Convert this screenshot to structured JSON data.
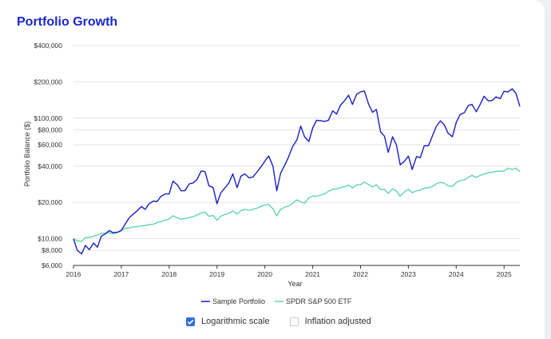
{
  "header": {
    "title": "Portfolio Growth"
  },
  "chart_data": {
    "type": "line",
    "title": "Portfolio Growth",
    "xlabel": "Year",
    "ylabel": "Portfolio Balance ($)",
    "yscale": "log",
    "ylim": [
      6000,
      400000
    ],
    "xlim": [
      2016.0,
      2025.33
    ],
    "x_ticks": [
      "2016",
      "2017",
      "2018",
      "2019",
      "2020",
      "2021",
      "2022",
      "2023",
      "2024",
      "2025"
    ],
    "y_ticks": [
      {
        "value": 6000,
        "label": "$6,000"
      },
      {
        "value": 8000,
        "label": "$8,000"
      },
      {
        "value": 10000,
        "label": "$10,000"
      },
      {
        "value": 20000,
        "label": "$20,000"
      },
      {
        "value": 40000,
        "label": "$40,000"
      },
      {
        "value": 60000,
        "label": "$60,000"
      },
      {
        "value": 80000,
        "label": "$80,000"
      },
      {
        "value": 100000,
        "label": "$100,000"
      },
      {
        "value": 200000,
        "label": "$200,000"
      },
      {
        "value": 400000,
        "label": "$400,000"
      }
    ],
    "grid": true,
    "legend_position": "bottom-center",
    "series": [
      {
        "name": "Sample Portfolio",
        "color": "#1a1fc4",
        "points": [
          [
            2016.0,
            10000
          ],
          [
            2016.08,
            8000
          ],
          [
            2016.17,
            7500
          ],
          [
            2016.25,
            8800
          ],
          [
            2016.33,
            8100
          ],
          [
            2016.42,
            9200
          ],
          [
            2016.5,
            8500
          ],
          [
            2016.58,
            10500
          ],
          [
            2016.67,
            11000
          ],
          [
            2016.75,
            11700
          ],
          [
            2016.83,
            11200
          ],
          [
            2016.92,
            11300
          ],
          [
            2017.0,
            11700
          ],
          [
            2017.08,
            13200
          ],
          [
            2017.17,
            15000
          ],
          [
            2017.25,
            16000
          ],
          [
            2017.33,
            17000
          ],
          [
            2017.42,
            18500
          ],
          [
            2017.5,
            17500
          ],
          [
            2017.58,
            19500
          ],
          [
            2017.67,
            20500
          ],
          [
            2017.75,
            20400
          ],
          [
            2017.83,
            22500
          ],
          [
            2017.92,
            23500
          ],
          [
            2018.0,
            23500
          ],
          [
            2018.08,
            30000
          ],
          [
            2018.17,
            28000
          ],
          [
            2018.25,
            25000
          ],
          [
            2018.33,
            25000
          ],
          [
            2018.42,
            28500
          ],
          [
            2018.5,
            29000
          ],
          [
            2018.58,
            31000
          ],
          [
            2018.67,
            36500
          ],
          [
            2018.75,
            36000
          ],
          [
            2018.83,
            27500
          ],
          [
            2018.92,
            26500
          ],
          [
            2019.0,
            19500
          ],
          [
            2019.08,
            24000
          ],
          [
            2019.17,
            26500
          ],
          [
            2019.25,
            29000
          ],
          [
            2019.33,
            34500
          ],
          [
            2019.42,
            26500
          ],
          [
            2019.5,
            33000
          ],
          [
            2019.58,
            34500
          ],
          [
            2019.67,
            32000
          ],
          [
            2019.75,
            32500
          ],
          [
            2019.83,
            35500
          ],
          [
            2019.92,
            39500
          ],
          [
            2020.0,
            44000
          ],
          [
            2020.08,
            48500
          ],
          [
            2020.17,
            40000
          ],
          [
            2020.25,
            25000
          ],
          [
            2020.33,
            35000
          ],
          [
            2020.42,
            41000
          ],
          [
            2020.5,
            48000
          ],
          [
            2020.58,
            58000
          ],
          [
            2020.67,
            66000
          ],
          [
            2020.75,
            86000
          ],
          [
            2020.83,
            70000
          ],
          [
            2020.92,
            64000
          ],
          [
            2021.0,
            83000
          ],
          [
            2021.08,
            96000
          ],
          [
            2021.17,
            95000
          ],
          [
            2021.25,
            94000
          ],
          [
            2021.33,
            96000
          ],
          [
            2021.42,
            115000
          ],
          [
            2021.5,
            108000
          ],
          [
            2021.58,
            128000
          ],
          [
            2021.67,
            140000
          ],
          [
            2021.75,
            155000
          ],
          [
            2021.83,
            130000
          ],
          [
            2021.92,
            158000
          ],
          [
            2022.0,
            165000
          ],
          [
            2022.08,
            168000
          ],
          [
            2022.17,
            130000
          ],
          [
            2022.25,
            112000
          ],
          [
            2022.33,
            118000
          ],
          [
            2022.42,
            77000
          ],
          [
            2022.5,
            71000
          ],
          [
            2022.58,
            52000
          ],
          [
            2022.67,
            70000
          ],
          [
            2022.75,
            60000
          ],
          [
            2022.83,
            41000
          ],
          [
            2022.92,
            44000
          ],
          [
            2023.0,
            48500
          ],
          [
            2023.08,
            37500
          ],
          [
            2023.17,
            48000
          ],
          [
            2023.25,
            47000
          ],
          [
            2023.33,
            59000
          ],
          [
            2023.42,
            59000
          ],
          [
            2023.5,
            71000
          ],
          [
            2023.58,
            85000
          ],
          [
            2023.67,
            95000
          ],
          [
            2023.75,
            88000
          ],
          [
            2023.83,
            75000
          ],
          [
            2023.92,
            70000
          ],
          [
            2024.0,
            92000
          ],
          [
            2024.08,
            107000
          ],
          [
            2024.17,
            111000
          ],
          [
            2024.25,
            127000
          ],
          [
            2024.33,
            130000
          ],
          [
            2024.42,
            113000
          ],
          [
            2024.5,
            130000
          ],
          [
            2024.58,
            152000
          ],
          [
            2024.67,
            139000
          ],
          [
            2024.75,
            140000
          ],
          [
            2024.83,
            150000
          ],
          [
            2024.92,
            145000
          ],
          [
            2025.0,
            167000
          ],
          [
            2025.08,
            165000
          ],
          [
            2025.17,
            175000
          ],
          [
            2025.25,
            160000
          ],
          [
            2025.33,
            125000
          ]
        ]
      },
      {
        "name": "SPDR S&P 500 ETF",
        "color": "#5fd6ad",
        "points": [
          [
            2016.0,
            10000
          ],
          [
            2016.08,
            9600
          ],
          [
            2016.17,
            9500
          ],
          [
            2016.25,
            10200
          ],
          [
            2016.33,
            10300
          ],
          [
            2016.42,
            10500
          ],
          [
            2016.5,
            10700
          ],
          [
            2016.58,
            11100
          ],
          [
            2016.67,
            11100
          ],
          [
            2016.75,
            11200
          ],
          [
            2016.83,
            11000
          ],
          [
            2016.92,
            11300
          ],
          [
            2017.0,
            11600
          ],
          [
            2017.08,
            12200
          ],
          [
            2017.17,
            12300
          ],
          [
            2017.25,
            12500
          ],
          [
            2017.33,
            12600
          ],
          [
            2017.42,
            12800
          ],
          [
            2017.5,
            12900
          ],
          [
            2017.58,
            13100
          ],
          [
            2017.67,
            13200
          ],
          [
            2017.75,
            13600
          ],
          [
            2017.83,
            13900
          ],
          [
            2017.92,
            14200
          ],
          [
            2018.0,
            14600
          ],
          [
            2018.08,
            15500
          ],
          [
            2018.17,
            14900
          ],
          [
            2018.25,
            14500
          ],
          [
            2018.33,
            14700
          ],
          [
            2018.42,
            15000
          ],
          [
            2018.5,
            15200
          ],
          [
            2018.58,
            15700
          ],
          [
            2018.67,
            16400
          ],
          [
            2018.75,
            16600
          ],
          [
            2018.83,
            15300
          ],
          [
            2018.92,
            15600
          ],
          [
            2019.0,
            14200
          ],
          [
            2019.08,
            15400
          ],
          [
            2019.17,
            15900
          ],
          [
            2019.25,
            16200
          ],
          [
            2019.33,
            17000
          ],
          [
            2019.42,
            16000
          ],
          [
            2019.5,
            17100
          ],
          [
            2019.58,
            17500
          ],
          [
            2019.67,
            17200
          ],
          [
            2019.75,
            17500
          ],
          [
            2019.83,
            17900
          ],
          [
            2019.92,
            18500
          ],
          [
            2020.0,
            19100
          ],
          [
            2020.08,
            19200
          ],
          [
            2020.17,
            17700
          ],
          [
            2020.25,
            15500
          ],
          [
            2020.33,
            17500
          ],
          [
            2020.42,
            18300
          ],
          [
            2020.5,
            18700
          ],
          [
            2020.58,
            19700
          ],
          [
            2020.67,
            21000
          ],
          [
            2020.75,
            20200
          ],
          [
            2020.83,
            19700
          ],
          [
            2020.92,
            21800
          ],
          [
            2021.0,
            22600
          ],
          [
            2021.08,
            22500
          ],
          [
            2021.17,
            23000
          ],
          [
            2021.25,
            23600
          ],
          [
            2021.33,
            24700
          ],
          [
            2021.42,
            25700
          ],
          [
            2021.5,
            25900
          ],
          [
            2021.58,
            26500
          ],
          [
            2021.67,
            27000
          ],
          [
            2021.75,
            27800
          ],
          [
            2021.83,
            26300
          ],
          [
            2021.92,
            28000
          ],
          [
            2022.0,
            28000
          ],
          [
            2022.08,
            29500
          ],
          [
            2022.17,
            28100
          ],
          [
            2022.25,
            26900
          ],
          [
            2022.33,
            28000
          ],
          [
            2022.42,
            25600
          ],
          [
            2022.5,
            25700
          ],
          [
            2022.58,
            23800
          ],
          [
            2022.67,
            25900
          ],
          [
            2022.75,
            24900
          ],
          [
            2022.83,
            22600
          ],
          [
            2022.92,
            24500
          ],
          [
            2023.0,
            25700
          ],
          [
            2023.08,
            24100
          ],
          [
            2023.17,
            25000
          ],
          [
            2023.25,
            25300
          ],
          [
            2023.33,
            26300
          ],
          [
            2023.42,
            26400
          ],
          [
            2023.5,
            27100
          ],
          [
            2023.58,
            28500
          ],
          [
            2023.67,
            29400
          ],
          [
            2023.75,
            28900
          ],
          [
            2023.83,
            27500
          ],
          [
            2023.92,
            27100
          ],
          [
            2024.0,
            29200
          ],
          [
            2024.08,
            30300
          ],
          [
            2024.17,
            30800
          ],
          [
            2024.25,
            32200
          ],
          [
            2024.33,
            33600
          ],
          [
            2024.42,
            32200
          ],
          [
            2024.5,
            33600
          ],
          [
            2024.58,
            34300
          ],
          [
            2024.67,
            35200
          ],
          [
            2024.75,
            35600
          ],
          [
            2024.83,
            36100
          ],
          [
            2024.92,
            36400
          ],
          [
            2025.0,
            36500
          ],
          [
            2025.08,
            38400
          ],
          [
            2025.17,
            37500
          ],
          [
            2025.25,
            38400
          ],
          [
            2025.33,
            36000
          ]
        ]
      }
    ]
  },
  "controls": {
    "log_scale": {
      "label": "Logarithmic scale",
      "checked": true
    },
    "inflation": {
      "label": "Inflation adjusted",
      "checked": false
    }
  }
}
